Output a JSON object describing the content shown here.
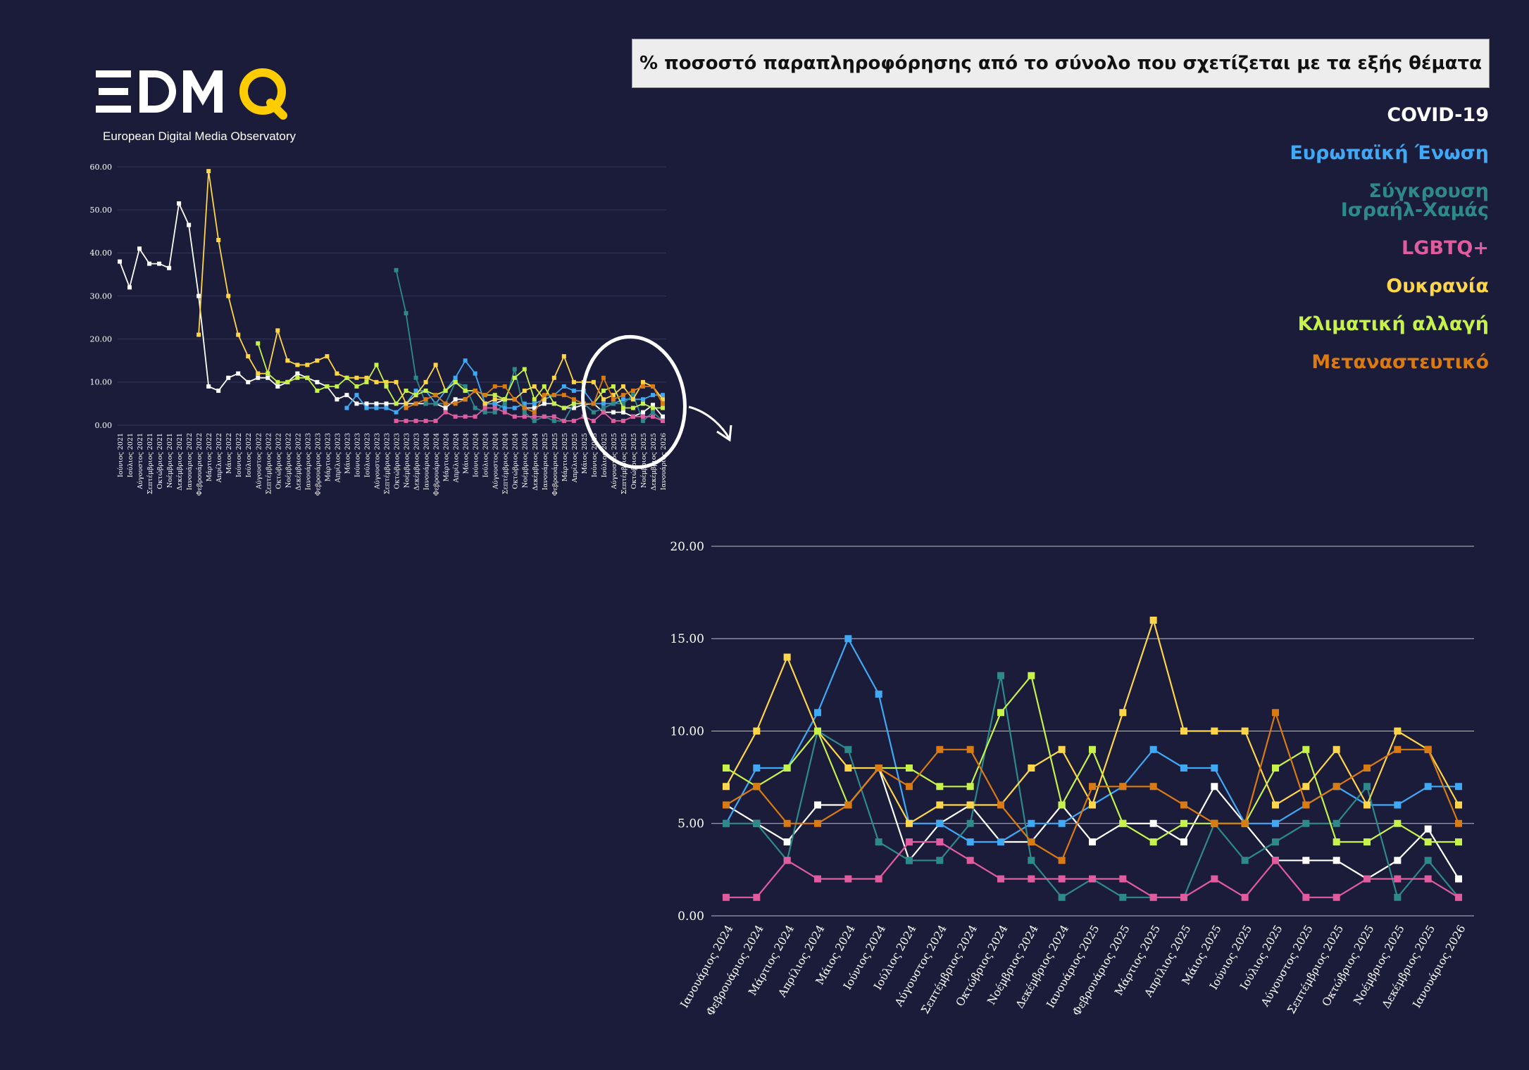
{
  "brand": {
    "logo_text": "EDMO",
    "subtitle": "European Digital Media Observatory"
  },
  "title": "% ποσοστό παραπληροφόρησης από το σύνολο που σχετίζεται με τα εξής θέματα",
  "legend": [
    {
      "key": "covid",
      "label": "COVID-19",
      "color": "#ffffff"
    },
    {
      "key": "eu",
      "label": "Ευρωπαϊκή Ένωση",
      "color": "#3fa9f5"
    },
    {
      "key": "israel",
      "label_lines": [
        "Σύγκρουση",
        "Ισραήλ-Χαμάς"
      ],
      "color": "#2e8a8a"
    },
    {
      "key": "lgbtq",
      "label": "LGBTQ+",
      "color": "#e05c9e"
    },
    {
      "key": "ukraine",
      "label": "Ουκρανία",
      "color": "#ffd54a"
    },
    {
      "key": "climate",
      "label": "Κλιματική αλλαγή",
      "color": "#c6f24a"
    },
    {
      "key": "migration",
      "label": "Μεταναστευτικό",
      "color": "#d97a12"
    }
  ],
  "chart_data": [
    {
      "type": "line",
      "ylim": [
        0,
        60
      ],
      "yticks": [
        "0.00",
        "10.00",
        "20.00",
        "30.00",
        "40.00",
        "50.00",
        "60.00"
      ],
      "categories": [
        "Ιούνιος 2021",
        "Ιούλιος 2021",
        "Αύγουστος 2021",
        "Σεπτέμβριος 2021",
        "Οκτώβριος 2021",
        "Νοέμβριος 2021",
        "Δεκέμβριος 2021",
        "Ιανουάριος 2022",
        "Φεβρουάριος 2022",
        "Μάρτιος 2022",
        "Απρίλιος 2022",
        "Μάιος 2022",
        "Ιούνιος 2022",
        "Ιούλιος 2022",
        "Αύγουστος 2022",
        "Σεπτέμβριος 2022",
        "Οκτώβριος 2022",
        "Νοέμβριος 2022",
        "Δεκέμβριος 2022",
        "Ιανουάριος 2023",
        "Φεβρουάριος 2023",
        "Μάρτιος 2023",
        "Απρίλιος 2023",
        "Μάιος 2023",
        "Ιούνιος 2023",
        "Ιούλιος 2023",
        "Αύγουστος 2023",
        "Σεπτέμβριος 2023",
        "Οκτώβριος 2023",
        "Νοέμβριος 2023",
        "Δεκέμβριος 2023",
        "Ιανουάριος 2024",
        "Φεβρουάριος 2024",
        "Μάρτιος 2024",
        "Απρίλιος 2024",
        "Μάιος 2024",
        "Ιούνιος 2024",
        "Ιούλιος 2024",
        "Αύγουστος 2024",
        "Σεπτέμβριος 2024",
        "Οκτώβριος 2024",
        "Νοέμβριος 2024",
        "Δεκέμβριος 2024",
        "Ιανουάριος 2025",
        "Φεβρουάριος 2025",
        "Μάρτιος 2025",
        "Απρίλιος 2025",
        "Μάιος 2025",
        "Ιούνιος 2025",
        "Ιούλιος 2025",
        "Αύγουστος 2025",
        "Σεπτέμβριος 2025",
        "Οκτώβριος 2025",
        "Νοέμβριος 2025",
        "Δεκέμβριος 2025",
        "Ιανουάριος 2026"
      ],
      "series": [
        {
          "name": "COVID-19",
          "key": "covid",
          "values": [
            38,
            32,
            41,
            37.5,
            37.5,
            36.5,
            51.5,
            46.5,
            30,
            9,
            8,
            11,
            12,
            10,
            11,
            11,
            9,
            10,
            12,
            11,
            10,
            9,
            6,
            7,
            5,
            5,
            5,
            5,
            5,
            5,
            5,
            5,
            5,
            4,
            6,
            6,
            8,
            5,
            5,
            6,
            6,
            4,
            4,
            5,
            5,
            4,
            4,
            4.8,
            5,
            3,
            3,
            3,
            2,
            3,
            4.7,
            2
          ]
        },
        {
          "name": "Ευρωπαϊκή Ένωση",
          "key": "eu",
          "values": [
            null,
            null,
            null,
            null,
            null,
            null,
            null,
            null,
            null,
            null,
            null,
            null,
            null,
            null,
            null,
            null,
            null,
            null,
            null,
            null,
            null,
            null,
            null,
            4,
            7,
            4,
            4,
            4,
            3,
            5,
            8,
            8,
            5,
            8,
            11,
            15,
            12,
            5,
            5,
            4,
            4,
            5,
            5,
            6,
            7,
            9,
            8,
            8,
            5,
            5,
            5,
            6,
            6,
            6,
            7,
            7
          ]
        },
        {
          "name": "Σύγκρουση Ισραήλ-Χαμάς",
          "key": "israel",
          "values": [
            null,
            null,
            null,
            null,
            null,
            null,
            null,
            null,
            null,
            null,
            null,
            null,
            null,
            null,
            null,
            null,
            null,
            null,
            null,
            null,
            null,
            null,
            null,
            null,
            null,
            null,
            null,
            null,
            36,
            26,
            11,
            5,
            5,
            5,
            10,
            9,
            4,
            3,
            3,
            5,
            13,
            3,
            1,
            2,
            1,
            1,
            5,
            5,
            3,
            4,
            5,
            5,
            7,
            1,
            3,
            1
          ]
        },
        {
          "name": "LGBTQ+",
          "key": "lgbtq",
          "values": [
            null,
            null,
            null,
            null,
            null,
            null,
            null,
            null,
            null,
            null,
            null,
            null,
            null,
            null,
            null,
            null,
            null,
            null,
            null,
            null,
            null,
            null,
            null,
            null,
            null,
            null,
            null,
            null,
            1,
            1,
            1,
            1,
            1,
            3,
            2,
            2,
            2,
            4,
            4,
            3,
            2,
            2,
            2,
            2,
            2,
            1,
            1,
            2,
            1,
            3,
            1,
            1,
            2,
            2,
            2,
            1
          ]
        },
        {
          "name": "Ουκρανία",
          "key": "ukraine",
          "values": [
            null,
            null,
            null,
            null,
            null,
            null,
            null,
            null,
            21,
            59,
            43,
            30,
            21,
            16,
            12,
            12,
            22,
            15,
            14,
            14,
            15,
            16,
            12,
            11,
            11,
            11,
            10,
            10,
            10,
            5,
            7,
            10,
            14,
            8,
            10,
            8,
            8,
            5,
            6,
            6,
            6,
            8,
            9,
            6,
            11,
            16,
            10,
            10,
            10,
            6,
            7,
            9,
            6,
            10,
            9,
            6
          ]
        },
        {
          "name": "Κλιματική αλλαγή",
          "key": "climate",
          "values": [
            null,
            null,
            null,
            null,
            null,
            null,
            null,
            null,
            null,
            null,
            null,
            null,
            null,
            null,
            19,
            12,
            10,
            10,
            11,
            11,
            8,
            9,
            9,
            11,
            9,
            10,
            14,
            9,
            5,
            8,
            7,
            8,
            7,
            8,
            10,
            8,
            8,
            7,
            7,
            6,
            11,
            13,
            6,
            9,
            5,
            4,
            5,
            5,
            5,
            8,
            9,
            4,
            4,
            5,
            4,
            4
          ]
        },
        {
          "name": "Μεταναστευτικό",
          "key": "migration",
          "values": [
            null,
            null,
            null,
            null,
            null,
            null,
            null,
            null,
            null,
            null,
            null,
            null,
            null,
            null,
            null,
            null,
            null,
            null,
            null,
            null,
            null,
            null,
            null,
            null,
            null,
            null,
            null,
            null,
            null,
            4,
            5,
            6,
            7,
            5,
            5,
            6,
            8,
            7,
            9,
            9,
            6,
            4,
            3,
            7,
            7,
            7,
            6,
            5,
            5,
            11,
            6,
            7,
            8,
            9,
            9,
            5
          ]
        }
      ]
    },
    {
      "type": "line",
      "ylim": [
        0,
        20
      ],
      "yticks": [
        "0.00",
        "5.00",
        "10.00",
        "15.00",
        "20.00"
      ],
      "categories": [
        "Ιανουάριος 2024",
        "Φεβρουάριος 2024",
        "Μάρτιος 2024",
        "Απρίλιος 2024",
        "Μάιος 2024",
        "Ιούνιος 2024",
        "Ιούλιος 2024",
        "Αύγουστος 2024",
        "Σεπτέμβριος 2024",
        "Οκτώβριος 2024",
        "Νοέμβριος 2024",
        "Δεκέμβριος 2024",
        "Ιανουάριος 2025",
        "Φεβρουάριος 2025",
        "Μάρτιος 2025",
        "Απρίλιος 2025",
        "Μάιος 2025",
        "Ιούνιος 2025",
        "Ιούλιος 2025",
        "Αύγουστος 2025",
        "Σεπτέμβριος 2025",
        "Οκτώβριος 2025",
        "Νοέμβριος 2025",
        "Δεκέμβριος 2025",
        "Ιανουάριος 2026"
      ],
      "series": [
        {
          "name": "COVID-19",
          "key": "covid",
          "values": [
            6,
            5,
            4,
            6,
            6,
            8,
            3,
            5,
            6,
            4,
            4,
            6,
            4,
            5,
            5,
            4,
            7,
            5,
            3,
            3,
            3,
            2,
            3,
            4.7,
            2
          ]
        },
        {
          "name": "Ευρωπαϊκή Ένωση",
          "key": "eu",
          "values": [
            5,
            8,
            8,
            11,
            15,
            12,
            5,
            5,
            4,
            4,
            5,
            5,
            6,
            7,
            9,
            8,
            8,
            5,
            5,
            6,
            7,
            6,
            6,
            7,
            7
          ]
        },
        {
          "name": "Σύγκρουση Ισραήλ-Χαμάς",
          "key": "israel",
          "values": [
            5,
            5,
            3,
            10,
            9,
            4,
            3,
            3,
            5,
            13,
            3,
            1,
            2,
            1,
            1,
            1,
            5,
            3,
            4,
            5,
            5,
            7,
            1,
            3,
            1
          ]
        },
        {
          "name": "LGBTQ+",
          "key": "lgbtq",
          "values": [
            1,
            1,
            3,
            2,
            2,
            2,
            4,
            4,
            3,
            2,
            2,
            2,
            2,
            2,
            1,
            1,
            2,
            1,
            3,
            1,
            1,
            2,
            2,
            2,
            1
          ]
        },
        {
          "name": "Ουκρανία",
          "key": "ukraine",
          "values": [
            7,
            10,
            14,
            10,
            8,
            8,
            5,
            6,
            6,
            6,
            8,
            9,
            6,
            11,
            16,
            10,
            10,
            10,
            6,
            7,
            9,
            6,
            10,
            9,
            6
          ]
        },
        {
          "name": "Κλιματική αλλαγή",
          "key": "climate",
          "values": [
            8,
            7,
            8,
            10,
            6,
            8,
            8,
            7,
            7,
            11,
            13,
            6,
            9,
            5,
            4,
            5,
            5,
            5,
            8,
            9,
            4,
            4,
            5,
            4,
            4
          ]
        },
        {
          "name": "Μεταναστευτικό",
          "key": "migration",
          "values": [
            6,
            7,
            5,
            5,
            6,
            8,
            7,
            9,
            9,
            6,
            4,
            3,
            7,
            7,
            7,
            6,
            5,
            5,
            11,
            6,
            7,
            8,
            9,
            9,
            5
          ]
        }
      ]
    }
  ]
}
